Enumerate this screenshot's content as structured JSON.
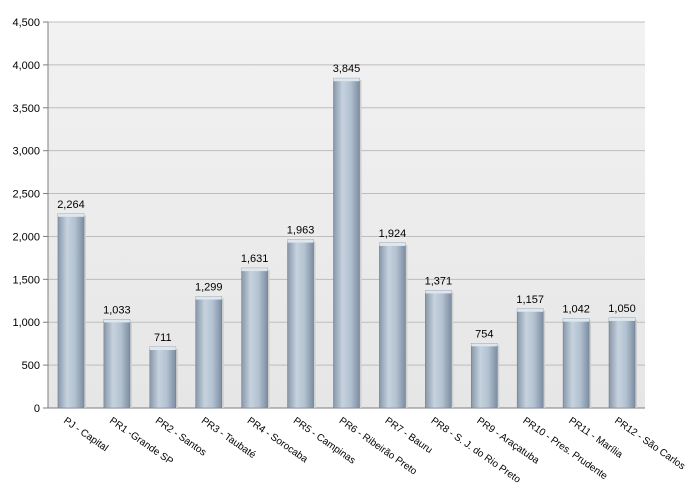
{
  "chart_data": {
    "type": "bar",
    "categories": [
      "PJ - Capital",
      "PR1 -Grande SP",
      "PR2 - Santos",
      "PR3 - Taubaté",
      "PR4 - Sorocaba",
      "PR5 - Campinas",
      "PR6 - Ribeirão Preto",
      "PR7 - Bauru",
      "PR8 - S. J. do Rio Preto",
      "PR9 - Araçatuba",
      "PR10 - Pres. Prudente",
      "PR11 - Marília",
      "PR12 - São Carlos"
    ],
    "values": [
      2264,
      1033,
      711,
      1299,
      1631,
      1963,
      3845,
      1924,
      1371,
      754,
      1157,
      1042,
      1050
    ],
    "value_labels": [
      "2,264",
      "1,033",
      "711",
      "1,299",
      "1,631",
      "1,963",
      "3,845",
      "1,924",
      "1,371",
      "754",
      "1,157",
      "1,042",
      "1,050"
    ],
    "y_ticks": [
      0,
      500,
      1000,
      1500,
      2000,
      2500,
      3000,
      3500,
      4000,
      4500
    ],
    "y_tick_labels": [
      "0",
      "500",
      "1,000",
      "1,500",
      "2,000",
      "2,500",
      "3,000",
      "3,500",
      "4,000",
      "4,500"
    ],
    "ylim": [
      0,
      4500
    ],
    "title": "",
    "xlabel": "",
    "ylabel": "",
    "grid": true,
    "legend": "none",
    "colors": {
      "bar_light": "#c9d5e0",
      "bar_mid": "#a9b9c9",
      "bar_dark": "#7f90a3",
      "bar_top": "#dfe7ee",
      "wall": "#ececec",
      "grid": "#bdbdbd",
      "axis": "#7f7f7f"
    }
  }
}
